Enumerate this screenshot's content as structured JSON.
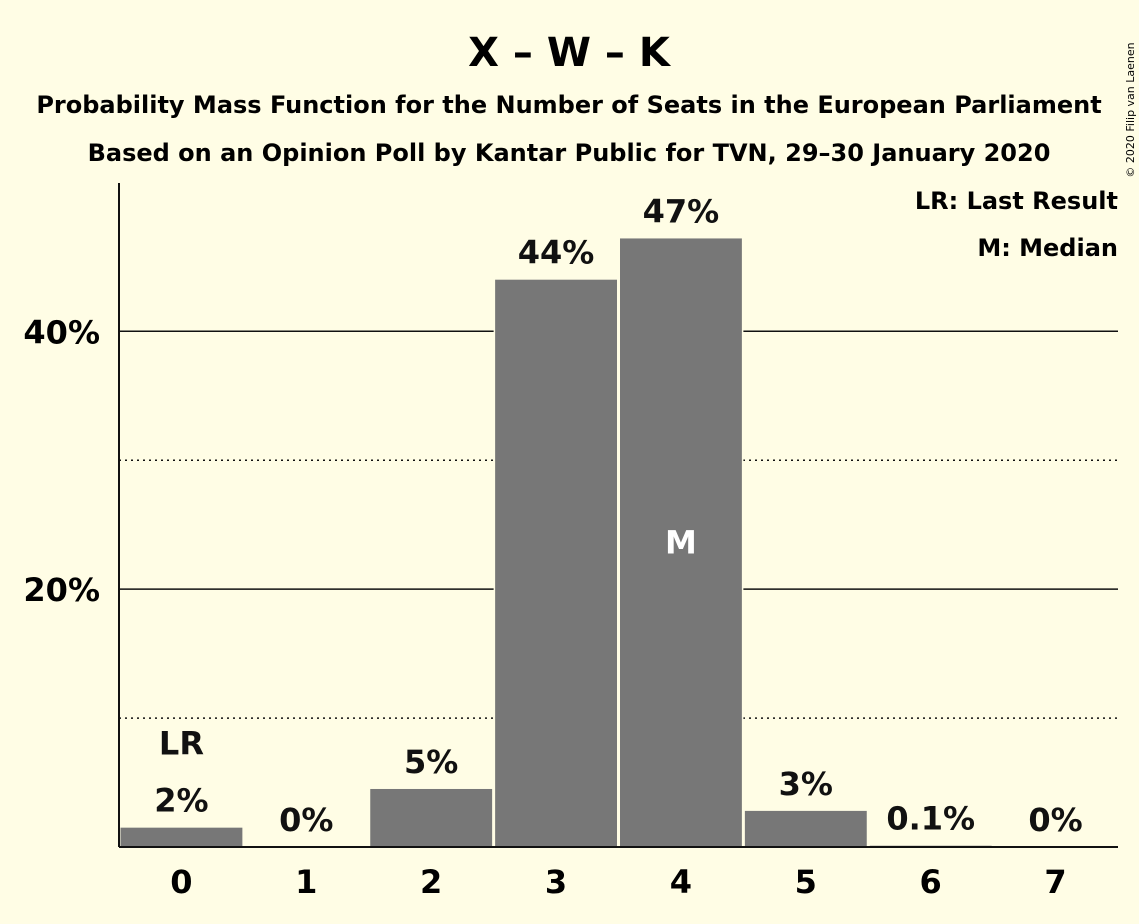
{
  "title": "X – W – K",
  "subtitle": "Probability Mass Function for the Number of Seats in the European Parliament",
  "subtitle2": "Based on an Opinion Poll by Kantar Public for TVN, 29–30 January 2020",
  "legend": {
    "last_result": "LR: Last Result",
    "median": "M: Median"
  },
  "copyright": "© 2020 Filip van Laenen",
  "colors": {
    "background": "#fffde5",
    "bar": "#777777",
    "text": "#111111"
  },
  "chart_data": {
    "type": "bar",
    "categories": [
      "0",
      "1",
      "2",
      "3",
      "4",
      "5",
      "6",
      "7"
    ],
    "values": [
      1.5,
      0,
      4.5,
      44,
      47.2,
      2.8,
      0.1,
      0
    ],
    "data_labels": [
      "2%",
      "0%",
      "5%",
      "44%",
      "47%",
      "3%",
      "0.1%",
      "0%"
    ],
    "last_result_index": 0,
    "last_result_label": "LR",
    "median_index": 4,
    "median_label": "M",
    "ylim": [
      0,
      51.5
    ],
    "yticks_major": [
      20,
      40
    ],
    "ytick_labels": [
      "20%",
      "40%"
    ],
    "yticks_minor": [
      10,
      30
    ],
    "grid": true,
    "legend_placement": "top-right"
  }
}
